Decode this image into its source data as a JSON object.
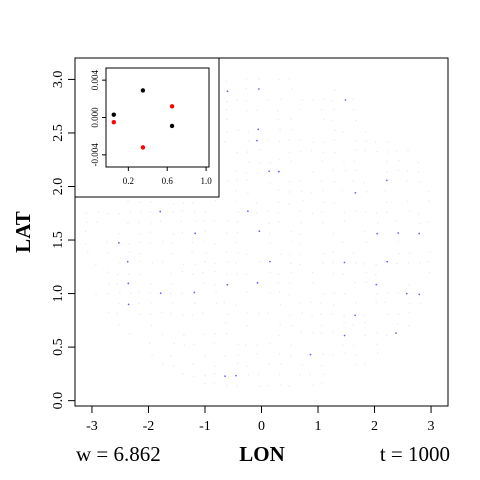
{
  "chart_data": [
    {
      "type": "scatter",
      "name": "main",
      "xlabel": "LON",
      "ylabel": "LAT",
      "xlim": [
        -3.3,
        3.3
      ],
      "ylim": [
        -0.05,
        3.2
      ],
      "x_ticks": [
        "-3",
        "-2",
        "-1",
        "0",
        "1",
        "2",
        "3"
      ],
      "y_ticks": [
        "0.0",
        "0.5",
        "1.0",
        "1.5",
        "2.0",
        "2.5",
        "3.0"
      ],
      "grid": false,
      "point_color": "#3333ff",
      "footer_w": "w = 6.862",
      "footer_t": "t =  1000"
    },
    {
      "type": "scatter",
      "name": "inset",
      "xlim": [
        -0.03,
        1.03
      ],
      "ylim": [
        -0.0053,
        0.0053
      ],
      "x_ticks": [
        "0.2",
        "0.6",
        "1.0"
      ],
      "y_ticks": [
        "-0.004",
        "0.000",
        "0.004"
      ],
      "series": [
        {
          "color": "#000000",
          "points": [
            [
              0.05,
              0.0003
            ],
            [
              0.35,
              0.0029
            ],
            [
              0.65,
              -0.0009
            ]
          ]
        },
        {
          "color": "#ff0000",
          "points": [
            [
              0.05,
              -0.0005
            ],
            [
              0.35,
              -0.0032
            ],
            [
              0.65,
              0.0012
            ]
          ]
        }
      ]
    }
  ]
}
